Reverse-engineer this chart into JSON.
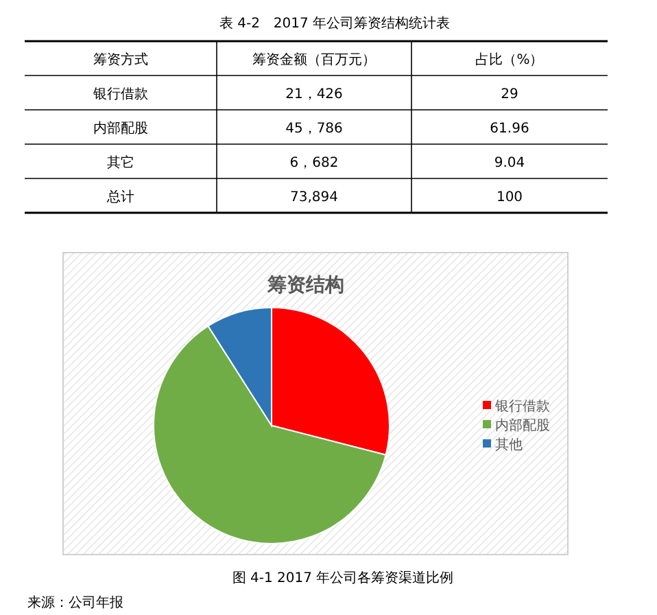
{
  "chart_data": [
    {
      "type": "other",
      "title": "表 4-2　2017 年公司筹资结构统计表",
      "annotations": [
        "筹资方式",
        "筹资金额（百万元）",
        "占比（%）",
        "银行借款",
        "21，426",
        "29",
        "内部配股",
        "45，786",
        "61.96",
        "其它",
        "6，682",
        "9.04",
        "总计",
        "73,894",
        "100"
      ]
    },
    {
      "type": "pie",
      "title": "筹资结构",
      "categories": [
        "银行借款",
        "内部配股",
        "其他"
      ],
      "values": [
        29,
        61.96,
        9.04
      ],
      "colors": [
        "#ff0000",
        "#70ad47",
        "#2e75b6"
      ],
      "legend": "right",
      "annotations": [
        "图 4-1 2017 年公司各筹资渠道比例",
        "来源：公司年报"
      ]
    }
  ]
}
